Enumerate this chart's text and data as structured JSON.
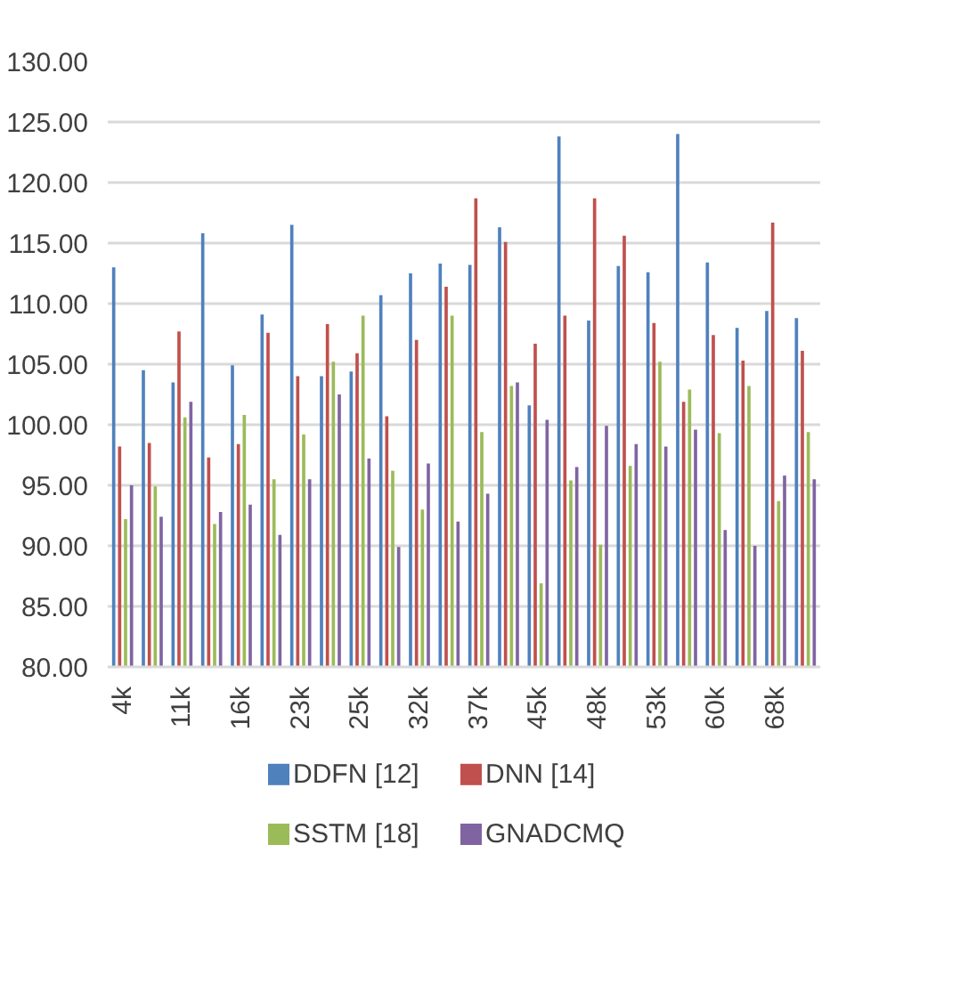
{
  "chart_data": {
    "type": "bar",
    "categories": [
      "4k",
      null,
      "11k",
      null,
      "16k",
      null,
      "23k",
      null,
      "25k",
      null,
      "32k",
      null,
      "37k",
      null,
      "45k",
      null,
      "48k",
      null,
      "53k",
      null,
      "60k",
      null,
      "68k",
      null
    ],
    "series": [
      {
        "name": "DDFN [12]",
        "color": "#4f81bd",
        "values": [
          113.0,
          104.5,
          103.5,
          115.8,
          104.9,
          109.1,
          116.5,
          104.0,
          104.4,
          110.7,
          112.5,
          113.3,
          113.2,
          116.3,
          101.6,
          123.8,
          108.6,
          113.1,
          112.6,
          124.0,
          113.4,
          108.0,
          109.4,
          108.8
        ]
      },
      {
        "name": "DNN [14]",
        "color": "#c0504d",
        "values": [
          98.2,
          98.5,
          107.7,
          97.3,
          98.4,
          107.6,
          104.0,
          108.3,
          105.9,
          100.7,
          107.0,
          111.4,
          118.7,
          115.1,
          106.7,
          109.0,
          118.7,
          115.6,
          108.4,
          101.9,
          107.4,
          105.3,
          116.7,
          106.1
        ]
      },
      {
        "name": "SSTM [18]",
        "color": "#9bbb59",
        "values": [
          92.2,
          94.9,
          100.6,
          91.8,
          100.8,
          95.5,
          99.2,
          105.2,
          109.0,
          96.2,
          93.0,
          109.0,
          99.4,
          103.2,
          86.9,
          95.4,
          90.1,
          96.6,
          105.2,
          102.9,
          99.3,
          103.2,
          93.7,
          99.4
        ]
      },
      {
        "name": "GNADCMQ",
        "color": "#8064a2",
        "values": [
          95.0,
          92.4,
          101.9,
          92.8,
          93.4,
          90.9,
          95.5,
          102.5,
          97.2,
          89.9,
          96.8,
          92.0,
          94.3,
          103.5,
          100.4,
          96.5,
          99.9,
          98.4,
          98.2,
          99.6,
          91.3,
          90.0,
          95.8,
          95.5
        ]
      }
    ],
    "ylim": [
      80,
      130
    ],
    "yticks": [
      {
        "value": 80,
        "label": "80.00"
      },
      {
        "value": 85,
        "label": "85.00"
      },
      {
        "value": 90,
        "label": "90.00"
      },
      {
        "value": 95,
        "label": "95.00"
      },
      {
        "value": 100,
        "label": "100.00"
      },
      {
        "value": 105,
        "label": "105.00"
      },
      {
        "value": 110,
        "label": "110.00"
      },
      {
        "value": 115,
        "label": "115.00"
      },
      {
        "value": 120,
        "label": "120.00"
      },
      {
        "value": 125,
        "label": "125.00"
      },
      {
        "value": 130,
        "label": "130.00"
      }
    ],
    "grid": "y",
    "legend": "bottom"
  }
}
